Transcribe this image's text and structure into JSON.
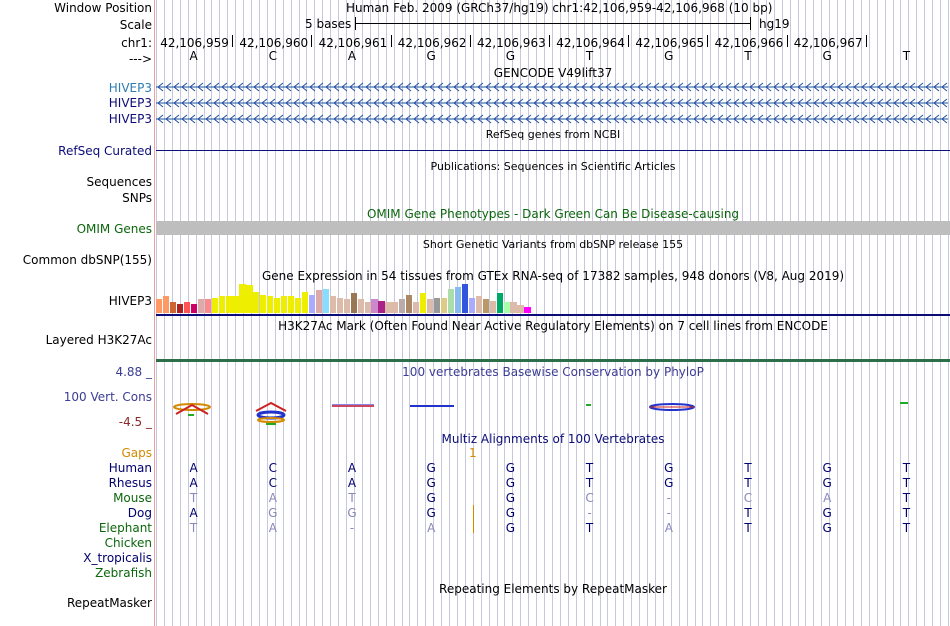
{
  "header": {
    "window_position_label": "Window Position",
    "window_position_value": "Human Feb. 2009 (GRCh37/hg19)   chr1:42,106,959-42,106,968 (10 bp)",
    "scale_label": "Scale",
    "scale_value": "5 bases",
    "scale_assembly": "hg19",
    "chrom_label": "chr1:",
    "strand_label": "--->",
    "positions": [
      "42,106,959",
      "42,106,960",
      "42,106,961",
      "42,106,962",
      "42,106,963",
      "42,106,964",
      "42,106,965",
      "42,106,966",
      "42,106,967"
    ],
    "bases": [
      "A",
      "C",
      "A",
      "G",
      "G",
      "T",
      "G",
      "T",
      "G",
      "T"
    ]
  },
  "tracks": {
    "gencode": {
      "title": "GENCODE V49lift37",
      "genes": [
        "HIVEP3",
        "HIVEP3",
        "HIVEP3"
      ],
      "color": "#1e50a0"
    },
    "refseq": {
      "title": "RefSeq genes from NCBI",
      "label": "RefSeq Curated"
    },
    "publications": {
      "title": "Publications: Sequences in Scientific Articles",
      "labels": [
        "Sequences",
        "SNPs"
      ]
    },
    "omim": {
      "title": "OMIM Gene Phenotypes - Dark Green Can Be Disease-causing",
      "label": "OMIM Genes"
    },
    "dbsnp": {
      "title": "Short Genetic Variants from dbSNP release 155",
      "label": "Common dbSNP(155)"
    },
    "gtex": {
      "title": "Gene Expression in 54 tissues from GTEx RNA-seq of 17382 samples, 948 donors (V8, Aug 2019)",
      "label": "HIVEP3",
      "bars": [
        {
          "h": 0.45,
          "c": "#ff9966"
        },
        {
          "h": 0.55,
          "c": "#ff9966"
        },
        {
          "h": 0.35,
          "c": "#cc6633"
        },
        {
          "h": 0.3,
          "c": "#aa2222"
        },
        {
          "h": 0.35,
          "c": "#ff5555"
        },
        {
          "h": 0.3,
          "c": "#cc0066"
        },
        {
          "h": 0.45,
          "c": "#ddaaaa"
        },
        {
          "h": 0.45,
          "c": "#ff8888"
        },
        {
          "h": 0.5,
          "c": "#eeee00"
        },
        {
          "h": 0.55,
          "c": "#eeee00"
        },
        {
          "h": 0.55,
          "c": "#eeee00"
        },
        {
          "h": 0.55,
          "c": "#eeee00"
        },
        {
          "h": 0.95,
          "c": "#eeee00"
        },
        {
          "h": 0.92,
          "c": "#eeee00"
        },
        {
          "h": 0.7,
          "c": "#eeee00"
        },
        {
          "h": 0.6,
          "c": "#eeee00"
        },
        {
          "h": 0.55,
          "c": "#eeee00"
        },
        {
          "h": 0.5,
          "c": "#eeee00"
        },
        {
          "h": 0.55,
          "c": "#eeee00"
        },
        {
          "h": 0.55,
          "c": "#eeee00"
        },
        {
          "h": 0.5,
          "c": "#eeee00"
        },
        {
          "h": 0.7,
          "c": "#eeee00"
        },
        {
          "h": 0.6,
          "c": "#aaaaff"
        },
        {
          "h": 0.75,
          "c": "#ddaaaa"
        },
        {
          "h": 0.8,
          "c": "#88ddff"
        },
        {
          "h": 0.55,
          "c": "#ddbbaa"
        },
        {
          "h": 0.5,
          "c": "#ddbbaa"
        },
        {
          "h": 0.45,
          "c": "#ddbbaa"
        },
        {
          "h": 0.65,
          "c": "#997755"
        },
        {
          "h": 0.45,
          "c": "#ddbbaa"
        },
        {
          "h": 0.35,
          "c": "#ddbbaa"
        },
        {
          "h": 0.45,
          "c": "#cc88cc"
        },
        {
          "h": 0.4,
          "c": "#aa2288"
        },
        {
          "h": 0.35,
          "c": "#ddbbaa"
        },
        {
          "h": 0.35,
          "c": "#ddbbaa"
        },
        {
          "h": 0.45,
          "c": "#bbaaaa"
        },
        {
          "h": 0.6,
          "c": "#aa8866"
        },
        {
          "h": 0.35,
          "c": "#ddbbaa"
        },
        {
          "h": 0.65,
          "c": "#eeee00"
        },
        {
          "h": 0.45,
          "c": "#ddbbaa"
        },
        {
          "h": 0.5,
          "c": "#999999"
        },
        {
          "h": 0.5,
          "c": "#ddcc88"
        },
        {
          "h": 0.8,
          "c": "#aaddaa"
        },
        {
          "h": 0.85,
          "c": "#88bbee"
        },
        {
          "h": 0.95,
          "c": "#3355dd"
        },
        {
          "h": 0.5,
          "c": "#aaaaff"
        },
        {
          "h": 0.55,
          "c": "#ddbbaa"
        },
        {
          "h": 0.45,
          "c": "#bb9966"
        },
        {
          "h": 0.4,
          "c": "#ddbbaa"
        },
        {
          "h": 0.65,
          "c": "#00aa66"
        },
        {
          "h": 0.35,
          "c": "#aaffaa"
        },
        {
          "h": 0.35,
          "c": "#ddbbaa"
        },
        {
          "h": 0.25,
          "c": "#ddbbaa"
        },
        {
          "h": 0.2,
          "c": "#ff00ff"
        }
      ]
    },
    "h3k27ac": {
      "title": "H3K27Ac Mark (Often Found Near Active Regulatory Elements) on 7 cell lines from ENCODE",
      "label": "Layered H3K27Ac"
    },
    "phylop": {
      "title": "100 vertebrates Basewise Conservation by PhyloP",
      "label": "100 Vert. Cons",
      "max_label": "4.88 _",
      "min_label": "-4.5 _"
    },
    "multiz": {
      "title": "Multiz Alignments of 100 Vertebrates",
      "gaps_label": "Gaps",
      "gap_count": "1",
      "species": [
        {
          "name": "Human",
          "bases": [
            "A",
            "C",
            "A",
            "G",
            "G",
            "T",
            "G",
            "T",
            "G",
            "T"
          ],
          "dim": [
            0,
            0,
            0,
            0,
            0,
            0,
            0,
            0,
            0,
            0
          ]
        },
        {
          "name": "Rhesus",
          "bases": [
            "A",
            "C",
            "A",
            "G",
            "G",
            "T",
            "G",
            "T",
            "G",
            "T"
          ],
          "dim": [
            0,
            0,
            0,
            0,
            0,
            0,
            0,
            0,
            0,
            0
          ]
        },
        {
          "name": "Mouse",
          "bases": [
            "T",
            "A",
            "T",
            "G",
            "G",
            "C",
            "-",
            "C",
            "A",
            "T"
          ],
          "dim": [
            1,
            1,
            1,
            0,
            0,
            1,
            1,
            1,
            1,
            0
          ]
        },
        {
          "name": "Dog",
          "bases": [
            "A",
            "G",
            "G",
            "G",
            "G",
            "-",
            "-",
            "T",
            "G",
            "T"
          ],
          "dim": [
            0,
            1,
            1,
            0,
            0,
            1,
            1,
            0,
            0,
            0
          ]
        },
        {
          "name": "Elephant",
          "bases": [
            "T",
            "A",
            "-",
            "A",
            "G",
            "T",
            "A",
            "T",
            "G",
            "T"
          ],
          "dim": [
            1,
            1,
            1,
            1,
            0,
            0,
            1,
            0,
            0,
            0
          ]
        },
        {
          "name": "Chicken",
          "bases": [],
          "dim": []
        },
        {
          "name": "X_tropicalis",
          "bases": [],
          "dim": []
        },
        {
          "name": "Zebrafish",
          "bases": [],
          "dim": []
        }
      ]
    },
    "repeatmasker": {
      "title": "Repeating Elements by RepeatMasker",
      "label": "RepeatMasker"
    }
  },
  "colors": {
    "gencode": "#1e50a0",
    "refseq": "#0c0c78",
    "omim": "#0c660c",
    "phylop": "#3c3c96",
    "phylop_min": "#8c2828",
    "gaps": "#d48a00",
    "human": "#000070",
    "mouse": "#0c660c",
    "dim_base": "#8888bb"
  }
}
